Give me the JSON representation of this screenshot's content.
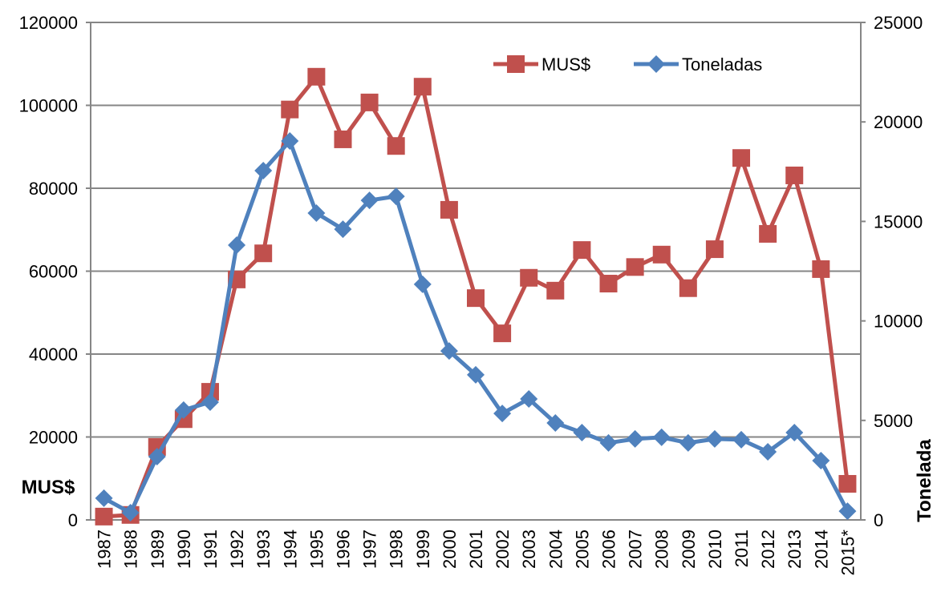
{
  "chart_data": {
    "type": "line",
    "categories": [
      "1987",
      "1988",
      "1989",
      "1990",
      "1991",
      "1992",
      "1993",
      "1994",
      "1995",
      "1996",
      "1997",
      "1998",
      "1999",
      "2000",
      "2001",
      "2002",
      "2003",
      "2004",
      "2005",
      "2006",
      "2007",
      "2008",
      "2009",
      "2010",
      "2011",
      "2012",
      "2013",
      "2014",
      "2015*"
    ],
    "y_label": "MUS$",
    "y2_label": "Tonelada",
    "ylim": [
      0,
      120000
    ],
    "yticks": [
      0,
      20000,
      40000,
      60000,
      80000,
      100000,
      120000
    ],
    "y2lim": [
      0,
      25000
    ],
    "y2ticks": [
      0,
      5000,
      10000,
      15000,
      20000,
      25000
    ],
    "grid": true,
    "legend": "top",
    "series": [
      {
        "name": "MUS$",
        "color": "#c0504d",
        "marker": "square",
        "values": [
          800,
          1200,
          17600,
          24300,
          30900,
          58000,
          64300,
          99000,
          106900,
          91800,
          100700,
          90200,
          104500,
          74800,
          53500,
          45000,
          58400,
          55300,
          65100,
          57000,
          61000,
          64000,
          55900,
          65300,
          87300,
          69000,
          83100,
          60500,
          8700
        ]
      },
      {
        "name": "Toneladas",
        "color": "#4f81bd",
        "marker": "diamond",
        "axis": "y2",
        "values": [
          1090,
          360,
          3180,
          5520,
          5920,
          13810,
          17550,
          19040,
          15420,
          14610,
          16060,
          16260,
          11840,
          8490,
          7290,
          5350,
          6080,
          4870,
          4390,
          3870,
          4070,
          4150,
          3870,
          4070,
          4030,
          3420,
          4390,
          2980,
          440
        ]
      }
    ]
  }
}
